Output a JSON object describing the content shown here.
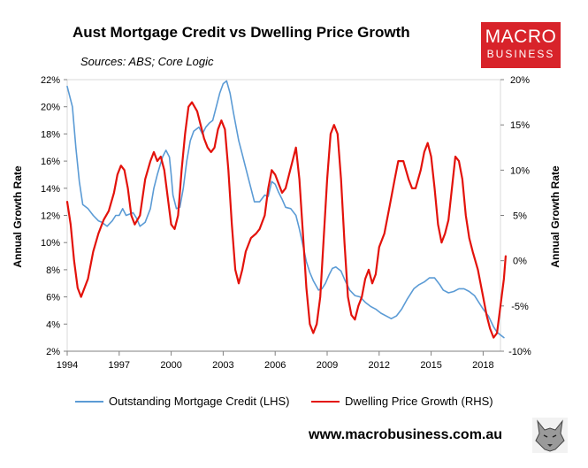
{
  "title": "Aust Mortgage Credit vs Dwelling Price Growth",
  "subtitle": "Sources: ABS; Core Logic",
  "logo": {
    "line1": "MACRO",
    "line2": "BUSINESS",
    "color": "#d8232a"
  },
  "footer": "www.macrobusiness.com.au",
  "chart_data": {
    "type": "line",
    "xlim": [
      1994,
      2019
    ],
    "x_ticks": [
      "1994",
      "1997",
      "2000",
      "2003",
      "2006",
      "2009",
      "2012",
      "2015",
      "2018"
    ],
    "y_left": {
      "label": "Annual Growth Rate",
      "ylim": [
        2,
        22
      ],
      "ticks": [
        "2%",
        "4%",
        "6%",
        "8%",
        "10%",
        "12%",
        "14%",
        "16%",
        "18%",
        "20%",
        "22%"
      ]
    },
    "y_right": {
      "label": "Annual Growth Rate",
      "ylim": [
        -10,
        20
      ],
      "ticks": [
        "-10%",
        "-5%",
        "0%",
        "5%",
        "10%",
        "15%",
        "20%"
      ]
    },
    "series": [
      {
        "name": "Outstanding Mortgage Credit (LHS)",
        "axis": "left",
        "color": "#5b9bd5",
        "points": [
          [
            1994.0,
            21.5
          ],
          [
            1994.3,
            20.0
          ],
          [
            1994.5,
            17.0
          ],
          [
            1994.7,
            14.5
          ],
          [
            1994.9,
            12.8
          ],
          [
            1995.2,
            12.5
          ],
          [
            1995.5,
            12.0
          ],
          [
            1995.8,
            11.6
          ],
          [
            1996.0,
            11.5
          ],
          [
            1996.3,
            11.2
          ],
          [
            1996.6,
            11.6
          ],
          [
            1996.8,
            12.0
          ],
          [
            1997.0,
            12.0
          ],
          [
            1997.2,
            12.5
          ],
          [
            1997.4,
            12.0
          ],
          [
            1997.6,
            12.1
          ],
          [
            1997.8,
            12.2
          ],
          [
            1998.0,
            11.8
          ],
          [
            1998.2,
            11.2
          ],
          [
            1998.5,
            11.5
          ],
          [
            1998.8,
            12.5
          ],
          [
            1999.0,
            14.0
          ],
          [
            1999.2,
            15.0
          ],
          [
            1999.5,
            16.3
          ],
          [
            1999.7,
            16.8
          ],
          [
            1999.9,
            16.3
          ],
          [
            2000.0,
            15.0
          ],
          [
            2000.1,
            13.5
          ],
          [
            2000.3,
            12.5
          ],
          [
            2000.5,
            12.6
          ],
          [
            2000.7,
            14.0
          ],
          [
            2000.9,
            16.0
          ],
          [
            2001.1,
            17.5
          ],
          [
            2001.3,
            18.2
          ],
          [
            2001.6,
            18.5
          ],
          [
            2001.8,
            18.0
          ],
          [
            2002.0,
            18.5
          ],
          [
            2002.2,
            18.8
          ],
          [
            2002.4,
            19.0
          ],
          [
            2002.6,
            20.0
          ],
          [
            2002.8,
            21.0
          ],
          [
            2003.0,
            21.7
          ],
          [
            2003.2,
            21.9
          ],
          [
            2003.4,
            21.0
          ],
          [
            2003.6,
            19.5
          ],
          [
            2003.9,
            17.5
          ],
          [
            2004.1,
            16.5
          ],
          [
            2004.3,
            15.5
          ],
          [
            2004.6,
            14.0
          ],
          [
            2004.8,
            13.0
          ],
          [
            2005.1,
            13.0
          ],
          [
            2005.4,
            13.5
          ],
          [
            2005.6,
            13.4
          ],
          [
            2005.8,
            14.5
          ],
          [
            2006.0,
            14.3
          ],
          [
            2006.2,
            13.7
          ],
          [
            2006.4,
            13.2
          ],
          [
            2006.6,
            12.6
          ],
          [
            2006.9,
            12.5
          ],
          [
            2007.2,
            12.0
          ],
          [
            2007.4,
            11.0
          ],
          [
            2007.6,
            9.8
          ],
          [
            2007.8,
            8.6
          ],
          [
            2008.0,
            7.8
          ],
          [
            2008.2,
            7.2
          ],
          [
            2008.5,
            6.5
          ],
          [
            2008.7,
            6.6
          ],
          [
            2008.9,
            7.0
          ],
          [
            2009.1,
            7.6
          ],
          [
            2009.3,
            8.1
          ],
          [
            2009.5,
            8.2
          ],
          [
            2009.8,
            7.9
          ],
          [
            2010.0,
            7.3
          ],
          [
            2010.3,
            6.5
          ],
          [
            2010.6,
            6.1
          ],
          [
            2010.9,
            6.0
          ],
          [
            2011.2,
            5.6
          ],
          [
            2011.5,
            5.3
          ],
          [
            2011.8,
            5.1
          ],
          [
            2012.1,
            4.8
          ],
          [
            2012.4,
            4.6
          ],
          [
            2012.7,
            4.4
          ],
          [
            2013.0,
            4.6
          ],
          [
            2013.3,
            5.1
          ],
          [
            2013.6,
            5.8
          ],
          [
            2014.0,
            6.6
          ],
          [
            2014.3,
            6.9
          ],
          [
            2014.6,
            7.1
          ],
          [
            2014.9,
            7.4
          ],
          [
            2015.2,
            7.4
          ],
          [
            2015.5,
            6.9
          ],
          [
            2015.7,
            6.5
          ],
          [
            2016.0,
            6.3
          ],
          [
            2016.3,
            6.4
          ],
          [
            2016.6,
            6.6
          ],
          [
            2016.9,
            6.6
          ],
          [
            2017.2,
            6.4
          ],
          [
            2017.5,
            6.1
          ],
          [
            2017.8,
            5.5
          ],
          [
            2018.0,
            5.1
          ],
          [
            2018.3,
            4.6
          ],
          [
            2018.6,
            3.8
          ],
          [
            2018.8,
            3.4
          ],
          [
            2019.0,
            3.2
          ],
          [
            2019.2,
            3.0
          ]
        ]
      },
      {
        "name": "Dwelling Price Growth (RHS)",
        "axis": "right",
        "color": "#e3120b",
        "points": [
          [
            1994.0,
            6.5
          ],
          [
            1994.2,
            4.0
          ],
          [
            1994.4,
            0.0
          ],
          [
            1994.6,
            -3.0
          ],
          [
            1994.8,
            -4.0
          ],
          [
            1995.0,
            -3.0
          ],
          [
            1995.2,
            -2.0
          ],
          [
            1995.5,
            1.0
          ],
          [
            1995.8,
            3.0
          ],
          [
            1996.1,
            4.5
          ],
          [
            1996.4,
            5.5
          ],
          [
            1996.7,
            7.5
          ],
          [
            1996.9,
            9.5
          ],
          [
            1997.1,
            10.5
          ],
          [
            1997.3,
            10.0
          ],
          [
            1997.5,
            8.0
          ],
          [
            1997.7,
            5.0
          ],
          [
            1997.9,
            4.0
          ],
          [
            1998.2,
            5.0
          ],
          [
            1998.5,
            9.0
          ],
          [
            1998.8,
            11.0
          ],
          [
            1999.0,
            12.0
          ],
          [
            1999.2,
            11.0
          ],
          [
            1999.4,
            11.5
          ],
          [
            1999.6,
            10.0
          ],
          [
            1999.8,
            7.0
          ],
          [
            2000.0,
            4.0
          ],
          [
            2000.2,
            3.5
          ],
          [
            2000.4,
            5.0
          ],
          [
            2000.6,
            10.0
          ],
          [
            2000.8,
            14.0
          ],
          [
            2001.0,
            17.0
          ],
          [
            2001.2,
            17.5
          ],
          [
            2001.5,
            16.5
          ],
          [
            2001.7,
            15.0
          ],
          [
            2001.9,
            13.5
          ],
          [
            2002.1,
            12.5
          ],
          [
            2002.3,
            12.0
          ],
          [
            2002.5,
            12.5
          ],
          [
            2002.7,
            14.5
          ],
          [
            2002.9,
            15.5
          ],
          [
            2003.1,
            14.5
          ],
          [
            2003.3,
            10.0
          ],
          [
            2003.5,
            4.0
          ],
          [
            2003.7,
            -1.0
          ],
          [
            2003.9,
            -2.5
          ],
          [
            2004.1,
            -1.0
          ],
          [
            2004.3,
            1.0
          ],
          [
            2004.6,
            2.5
          ],
          [
            2004.9,
            3.0
          ],
          [
            2005.1,
            3.5
          ],
          [
            2005.4,
            5.0
          ],
          [
            2005.6,
            8.0
          ],
          [
            2005.8,
            10.0
          ],
          [
            2006.0,
            9.5
          ],
          [
            2006.2,
            8.5
          ],
          [
            2006.4,
            7.5
          ],
          [
            2006.6,
            8.0
          ],
          [
            2006.8,
            9.5
          ],
          [
            2007.0,
            11.0
          ],
          [
            2007.2,
            12.5
          ],
          [
            2007.4,
            9.0
          ],
          [
            2007.6,
            3.0
          ],
          [
            2007.8,
            -3.0
          ],
          [
            2008.0,
            -7.0
          ],
          [
            2008.2,
            -8.0
          ],
          [
            2008.4,
            -7.0
          ],
          [
            2008.6,
            -4.0
          ],
          [
            2008.8,
            2.5
          ],
          [
            2009.0,
            9.0
          ],
          [
            2009.2,
            14.0
          ],
          [
            2009.4,
            15.0
          ],
          [
            2009.6,
            14.0
          ],
          [
            2009.8,
            9.0
          ],
          [
            2010.0,
            2.0
          ],
          [
            2010.2,
            -4.0
          ],
          [
            2010.4,
            -6.0
          ],
          [
            2010.6,
            -6.5
          ],
          [
            2010.8,
            -5.0
          ],
          [
            2011.0,
            -4.0
          ],
          [
            2011.2,
            -2.0
          ],
          [
            2011.4,
            -1.0
          ],
          [
            2011.6,
            -2.5
          ],
          [
            2011.8,
            -1.5
          ],
          [
            2012.0,
            1.5
          ],
          [
            2012.3,
            3.0
          ],
          [
            2012.6,
            6.0
          ],
          [
            2012.9,
            9.0
          ],
          [
            2013.1,
            11.0
          ],
          [
            2013.4,
            11.0
          ],
          [
            2013.7,
            9.0
          ],
          [
            2013.9,
            8.0
          ],
          [
            2014.1,
            8.0
          ],
          [
            2014.4,
            10.0
          ],
          [
            2014.6,
            12.0
          ],
          [
            2014.8,
            13.0
          ],
          [
            2015.0,
            11.5
          ],
          [
            2015.2,
            8.0
          ],
          [
            2015.4,
            4.0
          ],
          [
            2015.6,
            2.0
          ],
          [
            2015.8,
            3.0
          ],
          [
            2016.0,
            4.5
          ],
          [
            2016.2,
            8.0
          ],
          [
            2016.4,
            11.5
          ],
          [
            2016.6,
            11.0
          ],
          [
            2016.8,
            9.0
          ],
          [
            2017.0,
            5.0
          ],
          [
            2017.2,
            2.5
          ],
          [
            2017.4,
            1.0
          ],
          [
            2017.7,
            -1.0
          ],
          [
            2018.0,
            -4.0
          ],
          [
            2018.2,
            -6.0
          ],
          [
            2018.4,
            -7.5
          ],
          [
            2018.6,
            -8.5
          ],
          [
            2018.8,
            -8.0
          ],
          [
            2019.0,
            -5.0
          ],
          [
            2019.2,
            -2.0
          ],
          [
            2019.3,
            0.5
          ]
        ]
      }
    ]
  }
}
